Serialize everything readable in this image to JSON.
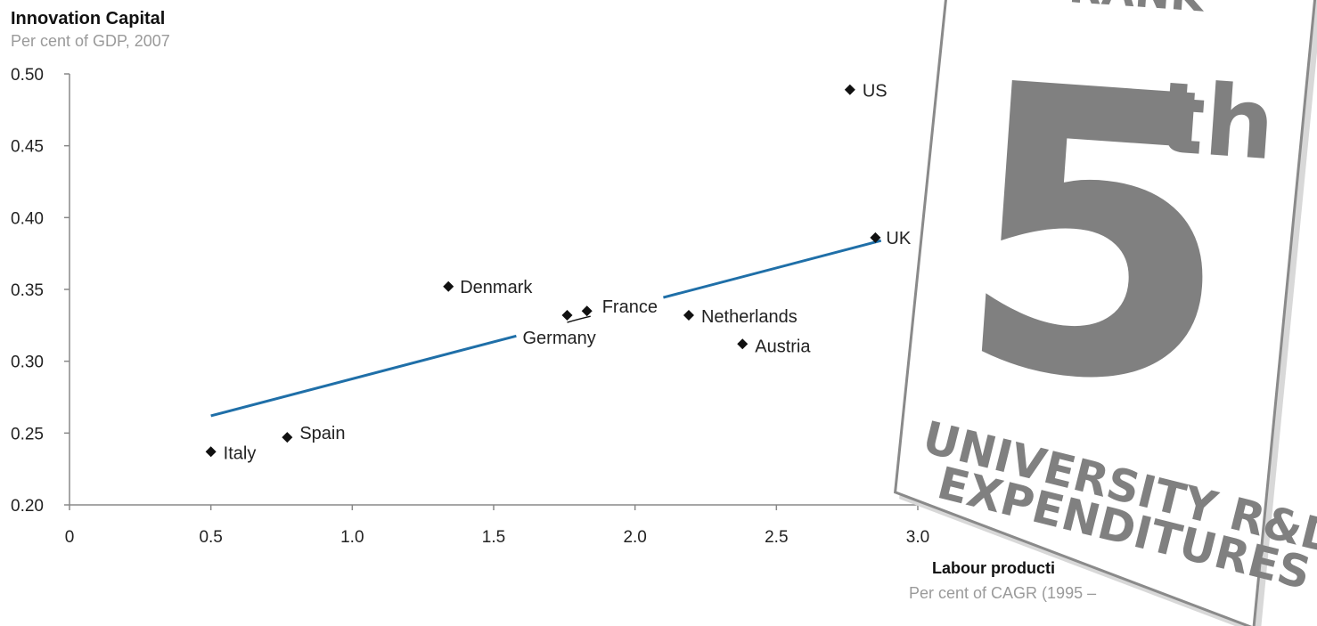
{
  "chart_data": {
    "type": "scatter",
    "title": "Innovation Capital",
    "subtitle": "Per cent of GDP, 2007",
    "xlabel": "Labour producti",
    "xsub": "Per cent of CAGR (1995 –",
    "xlim": [
      0,
      3.0
    ],
    "ylim": [
      0.2,
      0.5
    ],
    "xticks": [
      "0",
      "0.5",
      "1.0",
      "1.5",
      "2.0",
      "2.5",
      "3.0"
    ],
    "yticks": [
      "0.20",
      "0.25",
      "0.30",
      "0.35",
      "0.40",
      "0.45",
      "0.50"
    ],
    "grid": false,
    "points": [
      {
        "label": "Italy",
        "x": 0.5,
        "y": 0.237
      },
      {
        "label": "Spain",
        "x": 0.77,
        "y": 0.247
      },
      {
        "label": "Denmark",
        "x": 1.34,
        "y": 0.352
      },
      {
        "label": "Germany",
        "x": 1.76,
        "y": 0.332
      },
      {
        "label": "France",
        "x": 1.83,
        "y": 0.335
      },
      {
        "label": "Netherlands",
        "x": 2.19,
        "y": 0.332
      },
      {
        "label": "Austria",
        "x": 2.38,
        "y": 0.312
      },
      {
        "label": "US",
        "x": 2.76,
        "y": 0.489
      },
      {
        "label": "UK",
        "x": 2.85,
        "y": 0.386
      }
    ],
    "trendline": {
      "x": [
        0.5,
        2.87
      ],
      "y": [
        0.262,
        0.384
      ],
      "color": "#1f6fa8"
    },
    "marker_color": "#111111"
  },
  "overlay_card": {
    "top_text": "RANK",
    "number": "5",
    "suffix": "th",
    "line1": "UNIVERSITY R&D",
    "line2": "EXPENDITURES"
  }
}
